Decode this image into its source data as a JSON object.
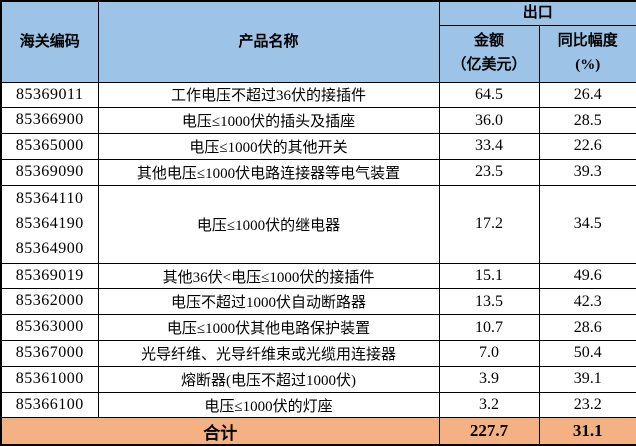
{
  "table": {
    "header": {
      "col_code": "海关编码",
      "col_product": "产品名称",
      "group_export": "出口",
      "col_amount_line1": "金额",
      "col_amount_line2": "（亿美元）",
      "col_yoy_line1": "同比幅度",
      "col_yoy_line2": "(%)"
    },
    "rows": [
      {
        "codes": [
          "85369011"
        ],
        "product": "工作电压不超过36伏的接插件",
        "amount": "64.5",
        "yoy": "26.4"
      },
      {
        "codes": [
          "85366900"
        ],
        "product": "电压≤1000伏的插头及插座",
        "amount": "36.0",
        "yoy": "28.5"
      },
      {
        "codes": [
          "85365000"
        ],
        "product": "电压≤1000伏的其他开关",
        "amount": "33.4",
        "yoy": "22.6"
      },
      {
        "codes": [
          "85369090"
        ],
        "product": "其他电压≤1000伏电路连接器等电气装置",
        "amount": "23.5",
        "yoy": "39.3"
      },
      {
        "codes": [
          "85364110",
          "85364190",
          "85364900"
        ],
        "product": "电压≤1000伏的继电器",
        "amount": "17.2",
        "yoy": "34.5"
      },
      {
        "codes": [
          "85369019"
        ],
        "product": "其他36伏<电压≤1000伏的接插件",
        "amount": "15.1",
        "yoy": "49.6"
      },
      {
        "codes": [
          "85362000"
        ],
        "product": "电压不超过1000伏自动断路器",
        "amount": "13.5",
        "yoy": "42.3"
      },
      {
        "codes": [
          "85363000"
        ],
        "product": "电压≤1000伏其他电路保护装置",
        "amount": "10.7",
        "yoy": "28.6"
      },
      {
        "codes": [
          "85367000"
        ],
        "product": "光导纤维、光导纤维束或光缆用连接器",
        "amount": "7.0",
        "yoy": "50.4"
      },
      {
        "codes": [
          "85361000"
        ],
        "product": "熔断器(电压不超过1000伏)",
        "amount": "3.9",
        "yoy": "39.1"
      },
      {
        "codes": [
          "85366100"
        ],
        "product": "电压≤1000伏的灯座",
        "amount": "3.2",
        "yoy": "23.2"
      }
    ],
    "total": {
      "label": "合计",
      "amount": "227.7",
      "yoy": "31.1"
    }
  },
  "colors": {
    "header_bg": "#9DC3E6",
    "total_bg": "#F4B183",
    "row_bg": "#FFFFFF",
    "border": "#000000",
    "text": "#000000"
  }
}
